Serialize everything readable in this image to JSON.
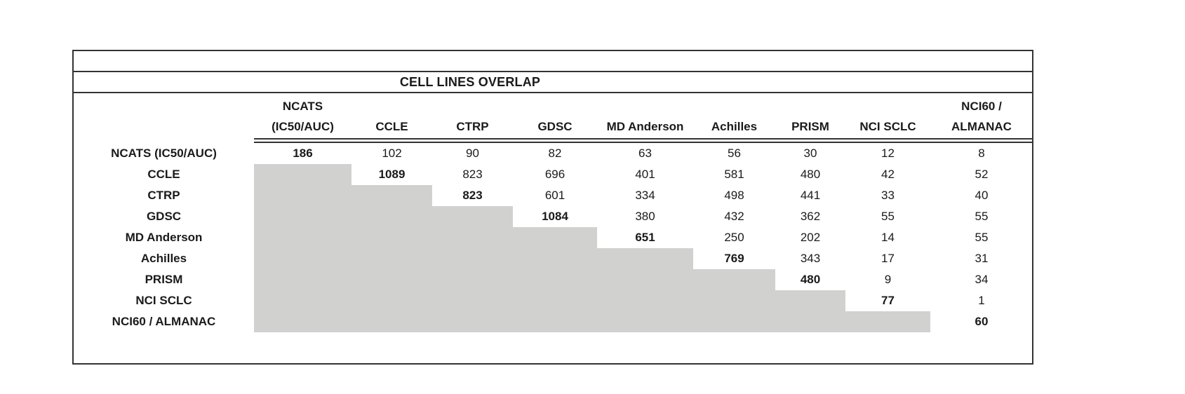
{
  "title_row": {
    "title": "CELL LINES OVERLAP"
  },
  "colors": {
    "shade": "#d1d1cf",
    "line": "#333333"
  },
  "table": {
    "columns": [
      {
        "label": "NCATS (IC50/AUC)",
        "lines": "NCATS\n(IC50/AUC)"
      },
      {
        "label": "CCLE",
        "lines": "CCLE"
      },
      {
        "label": "CTRP",
        "lines": "CTRP"
      },
      {
        "label": "GDSC",
        "lines": "GDSC"
      },
      {
        "label": "MD Anderson",
        "lines": "MD Anderson"
      },
      {
        "label": "Achilles",
        "lines": "Achilles"
      },
      {
        "label": "PRISM",
        "lines": "PRISM"
      },
      {
        "label": "NCI SCLC",
        "lines": "NCI SCLC"
      },
      {
        "label": "NCI60 / ALMANAC",
        "lines": "NCI60 /\nALMANAC"
      }
    ],
    "rows": [
      {
        "label": "NCATS (IC50/AUC)",
        "values": [
          "186",
          "102",
          "90",
          "82",
          "63",
          "56",
          "30",
          "12",
          "8"
        ]
      },
      {
        "label": "CCLE",
        "values": [
          null,
          "1089",
          "823",
          "696",
          "401",
          "581",
          "480",
          "42",
          "52"
        ]
      },
      {
        "label": "CTRP",
        "values": [
          null,
          null,
          "823",
          "601",
          "334",
          "498",
          "441",
          "33",
          "40"
        ]
      },
      {
        "label": "GDSC",
        "values": [
          null,
          null,
          null,
          "1084",
          "380",
          "432",
          "362",
          "55",
          "55"
        ]
      },
      {
        "label": "MD Anderson",
        "values": [
          null,
          null,
          null,
          null,
          "651",
          "250",
          "202",
          "14",
          "55"
        ]
      },
      {
        "label": "Achilles",
        "values": [
          null,
          null,
          null,
          null,
          null,
          "769",
          "343",
          "17",
          "31"
        ]
      },
      {
        "label": "PRISM",
        "values": [
          null,
          null,
          null,
          null,
          null,
          null,
          "480",
          "9",
          "34"
        ]
      },
      {
        "label": "NCI SCLC",
        "values": [
          null,
          null,
          null,
          null,
          null,
          null,
          null,
          "77",
          "1"
        ]
      },
      {
        "label": "NCI60 / ALMANAC",
        "values": [
          null,
          null,
          null,
          null,
          null,
          null,
          null,
          null,
          "60"
        ]
      }
    ]
  }
}
